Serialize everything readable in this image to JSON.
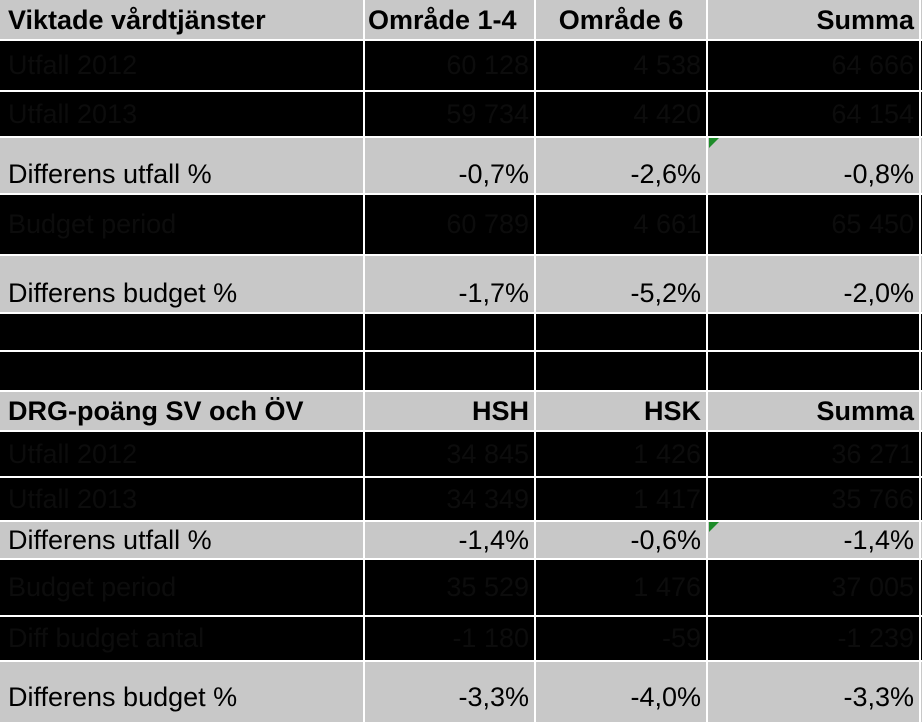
{
  "section1": {
    "header": [
      "Viktade vårdtjänster",
      "Område 1-4",
      "Område 6",
      "Summa"
    ],
    "rows": [
      {
        "label": "Utfall 2012",
        "v1": "60 128",
        "v2": "4 538",
        "v3": "64 666"
      },
      {
        "label": "Utfall 2013",
        "v1": "59 734",
        "v2": "4 420",
        "v3": "64 154"
      },
      {
        "label": "Differens utfall %",
        "v1": "-0,7%",
        "v2": "-2,6%",
        "v3": "-0,8%"
      },
      {
        "label": "Budget period",
        "v1": "60 789",
        "v2": "4 661",
        "v3": "65 450"
      },
      {
        "label": "Differens budget %",
        "v1": "-1,7%",
        "v2": "-5,2%",
        "v3": "-2,0%"
      }
    ]
  },
  "section2": {
    "header": [
      "DRG-poäng SV och ÖV",
      "HSH",
      "HSK",
      "Summa"
    ],
    "rows": [
      {
        "label": "Utfall 2012",
        "v1": "34 845",
        "v2": "1 426",
        "v3": "36 271"
      },
      {
        "label": "Utfall 2013",
        "v1": "34 349",
        "v2": "1 417",
        "v3": "35 766"
      },
      {
        "label": "Differens utfall %",
        "v1": "-1,4%",
        "v2": "-0,6%",
        "v3": "-1,4%"
      },
      {
        "label": "Budget period",
        "v1": "35 529",
        "v2": "1 476",
        "v3": "37 005"
      },
      {
        "label": "Diff budget antal",
        "v1": "-1 180",
        "v2": "-59",
        "v3": "-1 239"
      },
      {
        "label": "Differens budget %",
        "v1": "-3,3%",
        "v2": "-4,0%",
        "v3": "-3,3%"
      }
    ]
  },
  "colors": {
    "header_bg": "#c8c8c8",
    "pct_bg": "#c8c8c8",
    "dark_bg": "#000000",
    "grid": "#ffffff",
    "comment_marker": "#1e8c2a"
  }
}
